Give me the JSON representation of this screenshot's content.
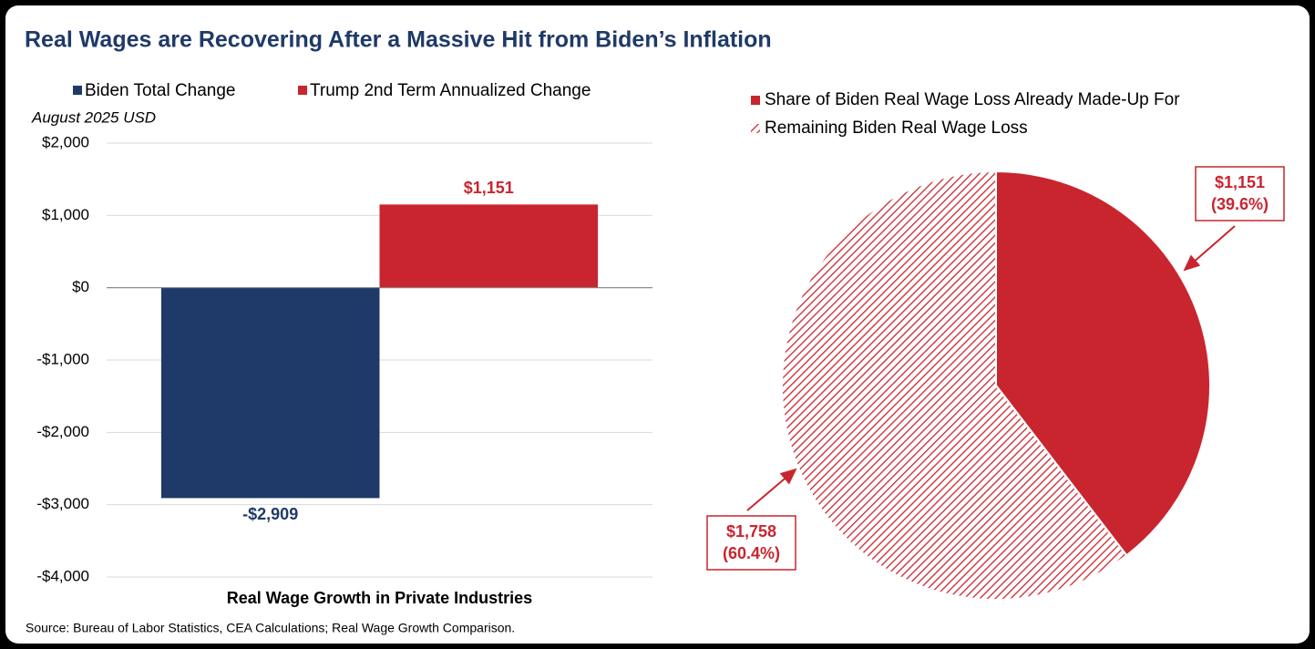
{
  "title": "Real Wages are Recovering After a Massive Hit from Biden’s Inflation",
  "source": "Source: Bureau of Labor Statistics, CEA Calculations; Real Wage Growth Comparison.",
  "chart_data": [
    {
      "type": "bar",
      "y_label": "August 2025 USD",
      "categories": [
        "Real Wage Growth in Private Industries"
      ],
      "series": [
        {
          "name": "Biden Total Change",
          "color": "#1f3a68",
          "values": [
            -2909
          ],
          "value_labels": [
            "-$2,909"
          ]
        },
        {
          "name": "Trump 2nd Term Annualized Change",
          "color": "#c9252f",
          "values": [
            1151
          ],
          "value_labels": [
            "$1,151"
          ]
        }
      ],
      "ylim": [
        -4000,
        2000
      ],
      "yticks": [
        {
          "value": 2000,
          "label": "$2,000"
        },
        {
          "value": 1000,
          "label": "$1,000"
        },
        {
          "value": 0,
          "label": "$0"
        },
        {
          "value": -1000,
          "label": "-$1,000"
        },
        {
          "value": -2000,
          "label": "-$2,000"
        },
        {
          "value": -3000,
          "label": "-$3,000"
        },
        {
          "value": -4000,
          "label": "-$4,000"
        }
      ],
      "grid": true
    },
    {
      "type": "pie",
      "categories": [
        "Share of Biden Real Wage Loss Already Made-Up For",
        "Remaining Biden Real Wage Loss"
      ],
      "values": [
        1151,
        1758
      ],
      "value_labels": [
        "$1,151",
        "$1,758"
      ],
      "percents": [
        39.6,
        60.4
      ],
      "percent_labels": [
        "(39.6%)",
        "(60.4%)"
      ],
      "colors": [
        "#c9252f",
        "#c9252f"
      ],
      "hatched": [
        false,
        true
      ]
    }
  ]
}
